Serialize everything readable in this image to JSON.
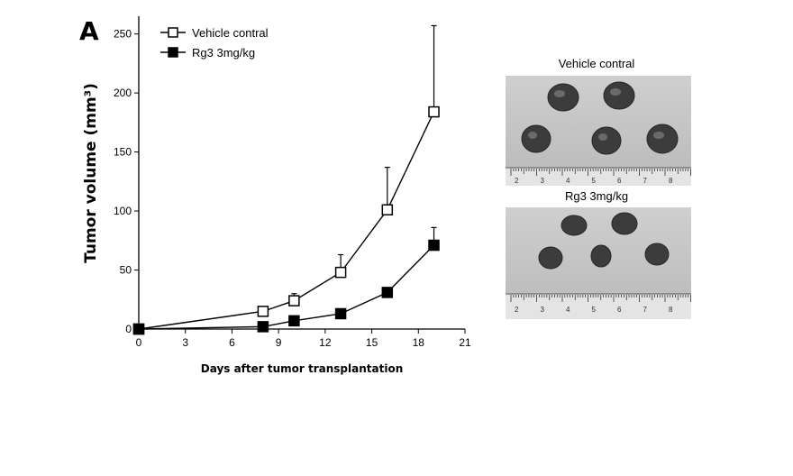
{
  "panel_label": "A",
  "photos": {
    "top_caption": "Vehicle contral",
    "bottom_caption": "Rg3 3mg/kg",
    "ruler_numbers": [
      "2",
      "3",
      "4",
      "5",
      "6",
      "7",
      "8"
    ]
  },
  "chart_data": {
    "type": "line",
    "xlabel": "Days after tumor transplantation",
    "ylabel": "Tumor volume (mm³)",
    "xlim": [
      0,
      21
    ],
    "ylim": [
      0,
      265
    ],
    "xticks": [
      0,
      3,
      6,
      9,
      12,
      15,
      18,
      21
    ],
    "yticks": [
      0,
      50,
      100,
      150,
      200,
      250
    ],
    "legend_position": "top-left",
    "series": [
      {
        "name": "Vehicle contral",
        "marker": "open-square",
        "x": [
          0,
          8,
          10,
          13,
          16,
          19
        ],
        "y": [
          0,
          15,
          24,
          48,
          101,
          184
        ],
        "error": [
          0,
          0,
          6,
          15,
          36,
          73
        ]
      },
      {
        "name": "Rg3 3mg/kg",
        "marker": "filled-square",
        "x": [
          0,
          8,
          10,
          13,
          16,
          19
        ],
        "y": [
          0,
          2,
          7,
          13,
          31,
          71
        ],
        "error": [
          0,
          0,
          0,
          0,
          0,
          15
        ]
      }
    ]
  }
}
